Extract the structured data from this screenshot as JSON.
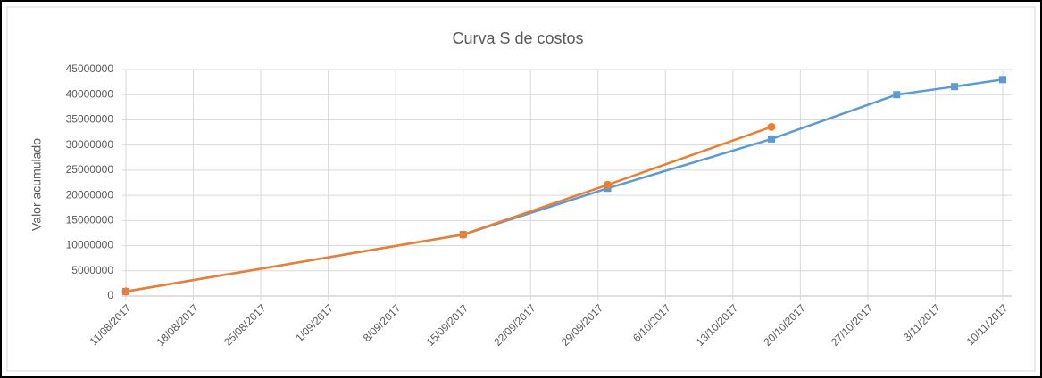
{
  "chart_data": {
    "type": "line",
    "title": "Curva S de costos",
    "ylabel": "Valor acumulado",
    "grid": true,
    "xlim": [
      "2017-08-11",
      "2017-11-10"
    ],
    "xticks": [
      {
        "value": "2017-08-11",
        "label": "11/08/2017"
      },
      {
        "value": "2017-08-18",
        "label": "18/08/2017"
      },
      {
        "value": "2017-08-25",
        "label": "25/08/2017"
      },
      {
        "value": "2017-09-01",
        "label": "1/09/2017"
      },
      {
        "value": "2017-09-08",
        "label": "8/09/2017"
      },
      {
        "value": "2017-09-15",
        "label": "15/09/2017"
      },
      {
        "value": "2017-09-22",
        "label": "22/09/2017"
      },
      {
        "value": "2017-09-29",
        "label": "29/09/2017"
      },
      {
        "value": "2017-10-06",
        "label": "6/10/2017"
      },
      {
        "value": "2017-10-13",
        "label": "13/10/2017"
      },
      {
        "value": "2017-10-20",
        "label": "20/10/2017"
      },
      {
        "value": "2017-10-27",
        "label": "27/10/2017"
      },
      {
        "value": "2017-11-03",
        "label": "3/11/2017"
      },
      {
        "value": "2017-11-10",
        "label": "10/11/2017"
      }
    ],
    "ylim": [
      0,
      45000000
    ],
    "yticks": [
      0,
      5000000,
      10000000,
      15000000,
      20000000,
      25000000,
      30000000,
      35000000,
      40000000,
      45000000
    ],
    "series": [
      {
        "color": "#5b9bd5",
        "marker": "square",
        "x": [
          "2017-08-11",
          "2017-09-15",
          "2017-09-30",
          "2017-10-17",
          "2017-10-30",
          "2017-11-05",
          "2017-11-10"
        ],
        "values": [
          900000,
          12200000,
          21400000,
          31200000,
          40000000,
          41600000,
          43000000
        ]
      },
      {
        "color": "#ed7d31",
        "marker": "circle",
        "x": [
          "2017-08-11",
          "2017-09-15",
          "2017-09-30",
          "2017-10-17"
        ],
        "values": [
          900000,
          12200000,
          22100000,
          33600000
        ]
      }
    ]
  }
}
